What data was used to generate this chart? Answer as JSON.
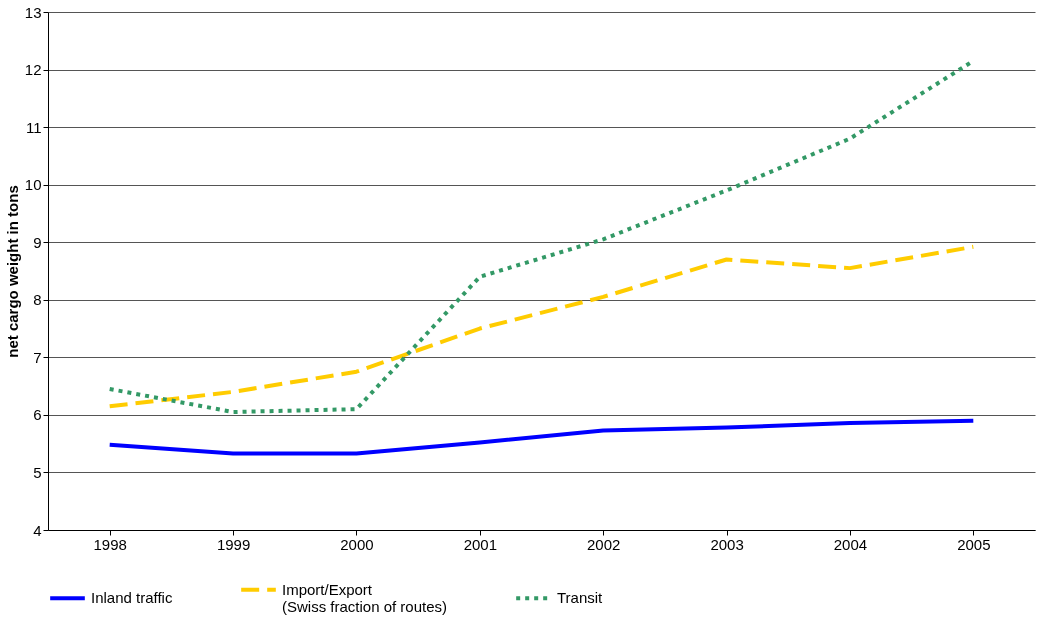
{
  "chart_data": {
    "type": "line",
    "ylabel": "net cargo weight in tons",
    "categories": [
      "1998",
      "1999",
      "2000",
      "2001",
      "2002",
      "2003",
      "2004",
      "2005"
    ],
    "series": [
      {
        "name": "Inland traffic",
        "color": "#0000ff",
        "line_style": "solid",
        "values": [
          5.48,
          5.33,
          5.33,
          5.52,
          5.73,
          5.78,
          5.86,
          5.9
        ]
      },
      {
        "name": "Import/Export\n(Swiss fraction of routes)",
        "color": "#ffcc00",
        "line_style": "dashed",
        "values": [
          6.15,
          6.4,
          6.75,
          7.5,
          8.05,
          8.7,
          8.55,
          8.92
        ]
      },
      {
        "name": "Transit",
        "color": "#339966",
        "line_style": "dotted",
        "values": [
          6.45,
          6.05,
          6.1,
          8.4,
          9.05,
          9.9,
          10.8,
          12.15
        ]
      }
    ],
    "ylim": [
      4,
      13
    ],
    "yticks": [
      4,
      5,
      6,
      7,
      8,
      9,
      10,
      11,
      12,
      13
    ],
    "grid": "y",
    "legend": "bottom",
    "marker": "none"
  }
}
